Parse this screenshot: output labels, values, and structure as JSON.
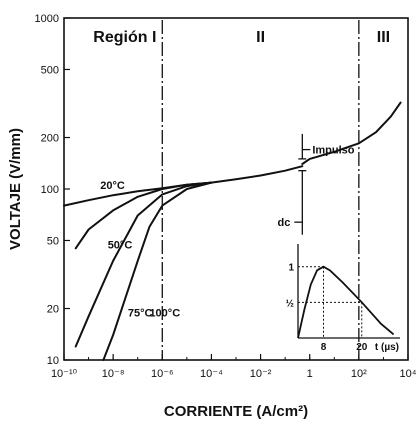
{
  "chart_data": {
    "type": "line",
    "xlabel": "CORRIENTE (A/cm²)",
    "ylabel": "VOLTAJE (V/mm)",
    "x_scale": "log",
    "y_scale": "log",
    "xlim": [
      1e-10,
      10000.0
    ],
    "ylim": [
      10,
      1000
    ],
    "x_ticks": [
      {
        "value": 1e-10,
        "label": "10⁻¹⁰"
      },
      {
        "value": 1e-08,
        "label": "10⁻⁸"
      },
      {
        "value": 1e-06,
        "label": "10⁻⁶"
      },
      {
        "value": 0.0001,
        "label": "10⁻⁴"
      },
      {
        "value": 0.01,
        "label": "10⁻²"
      },
      {
        "value": 1,
        "label": "1"
      },
      {
        "value": 100.0,
        "label": "10²"
      },
      {
        "value": 10000.0,
        "label": "10⁴"
      }
    ],
    "y_ticks": [
      {
        "value": 1000,
        "label": "1000"
      },
      {
        "value": 500,
        "label": "500"
      },
      {
        "value": 200,
        "label": "200"
      },
      {
        "value": 100,
        "label": "100"
      },
      {
        "value": 50,
        "label": "50"
      },
      {
        "value": 20,
        "label": "20"
      },
      {
        "value": 10,
        "label": "10"
      }
    ],
    "region_boundaries": [
      1e-06,
      100
    ],
    "regions": [
      {
        "label": "Región I",
        "x": 3e-08
      },
      {
        "label": "II",
        "x": 0.01
      },
      {
        "label": "III",
        "x": 1000
      }
    ],
    "series": [
      {
        "name": "20°C",
        "label_at": [
          3e-09,
          100
        ],
        "x": [
          1e-10,
          1e-09,
          1e-08,
          1e-07,
          1e-06,
          1e-05,
          0.0001
        ],
        "y": [
          80,
          86,
          92,
          97,
          101,
          106,
          109
        ]
      },
      {
        "name": "50°C",
        "label_at": [
          6e-09,
          45
        ],
        "x": [
          3e-10,
          1e-09,
          1e-08,
          1e-07,
          1e-06,
          1e-05,
          0.0001
        ],
        "y": [
          45,
          58,
          75,
          90,
          100,
          106,
          109
        ]
      },
      {
        "name": "75°C",
        "label_at": [
          4e-08,
          18
        ],
        "x": [
          3e-10,
          1e-09,
          1e-08,
          1e-07,
          1e-06,
          1e-05,
          0.0001
        ],
        "y": [
          12,
          18,
          38,
          70,
          93,
          104,
          109
        ]
      },
      {
        "name": "100°C",
        "label_at": [
          3e-07,
          18
        ],
        "x": [
          4e-09,
          1e-08,
          1e-07,
          3e-07,
          1e-06,
          1e-05,
          0.0001
        ],
        "y": [
          10,
          14,
          38,
          60,
          80,
          100,
          109
        ]
      },
      {
        "name": "",
        "x": [
          0.0001,
          0.001,
          0.01,
          0.1,
          0.5
        ],
        "y": [
          109,
          114,
          120,
          128,
          136
        ]
      },
      {
        "name": "",
        "x": [
          0.5,
          1,
          10,
          100,
          500,
          2000,
          5000
        ],
        "y": [
          140,
          150,
          165,
          185,
          215,
          265,
          320
        ]
      }
    ],
    "annotations": [
      {
        "text": "Impulso",
        "x": 0.7,
        "y": 170
      },
      {
        "text": "dc",
        "x": 0.02,
        "y": 64
      }
    ],
    "inset": {
      "type": "line",
      "x_tick_labels": [
        "8",
        "20"
      ],
      "x_unit": "t (µs)",
      "y_tick_labels": [
        "1",
        "½"
      ],
      "x": [
        0,
        2,
        4,
        6,
        8,
        10,
        14,
        20,
        26,
        30
      ],
      "y": [
        0,
        0.4,
        0.75,
        0.95,
        1.0,
        0.95,
        0.78,
        0.5,
        0.2,
        0.05
      ],
      "xlim": [
        0,
        32
      ],
      "ylim": [
        0,
        1.15
      ]
    }
  }
}
